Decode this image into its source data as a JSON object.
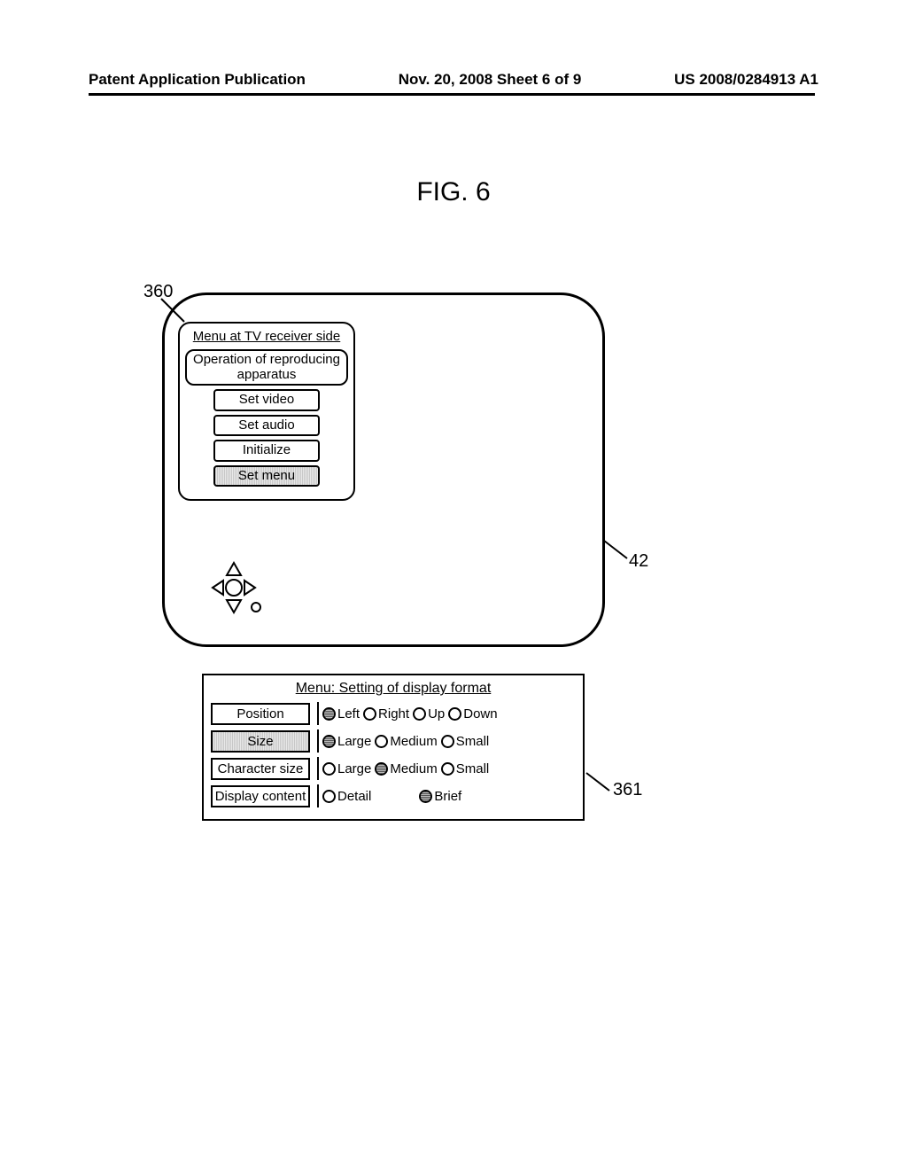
{
  "header": {
    "left": "Patent Application Publication",
    "center": "Nov. 20, 2008  Sheet 6 of 9",
    "right": "US 2008/0284913 A1"
  },
  "figure_title": "FIG. 6",
  "refs": {
    "r360": "360",
    "r42": "42",
    "r361": "361"
  },
  "tv_menu": {
    "title": "Menu at TV receiver side",
    "items": [
      {
        "label": "Operation of reproducing apparatus",
        "selected": false,
        "wide": true
      },
      {
        "label": "Set video",
        "selected": false,
        "wide": false
      },
      {
        "label": "Set audio",
        "selected": false,
        "wide": false
      },
      {
        "label": "Initialize",
        "selected": false,
        "wide": false
      },
      {
        "label": "Set menu",
        "selected": true,
        "wide": false
      }
    ]
  },
  "settings": {
    "title": "Menu:    Setting of display format",
    "rows": [
      {
        "label": "Position",
        "selected": false,
        "options": [
          {
            "label": "Left",
            "checked": true
          },
          {
            "label": "Right",
            "checked": false
          },
          {
            "label": "Up",
            "checked": false
          },
          {
            "label": "Down",
            "checked": false
          }
        ]
      },
      {
        "label": "Size",
        "selected": true,
        "options": [
          {
            "label": "Large",
            "checked": true
          },
          {
            "label": "Medium",
            "checked": false
          },
          {
            "label": "Small",
            "checked": false
          }
        ]
      },
      {
        "label": "Character size",
        "selected": false,
        "options": [
          {
            "label": "Large",
            "checked": false
          },
          {
            "label": "Medium",
            "checked": true
          },
          {
            "label": "Small",
            "checked": false
          }
        ]
      },
      {
        "label": "Display content",
        "selected": false,
        "options": [
          {
            "label": "Detail",
            "checked": false
          },
          {
            "label": "Brief",
            "checked": true
          }
        ]
      }
    ]
  },
  "colors": {
    "stroke": "#000000",
    "halftone_a": "#c8c8c8",
    "halftone_b": "#e8e8e8"
  }
}
